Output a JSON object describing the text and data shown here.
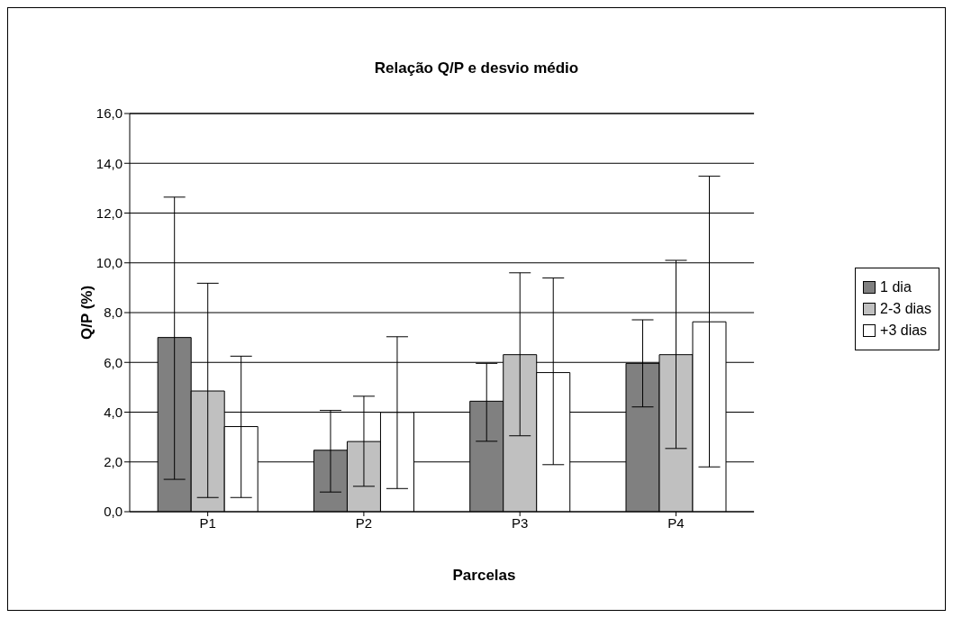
{
  "chart_data": {
    "type": "bar",
    "title": "Relação Q/P e desvio médio",
    "xlabel": "Parcelas",
    "ylabel": "Q/P (%)",
    "categories": [
      "P1",
      "P2",
      "P3",
      "P4"
    ],
    "series": [
      {
        "name": "1 dia",
        "color": "#808080",
        "values": [
          7.0,
          2.47,
          4.44,
          5.96
        ],
        "errors": [
          [
            1.3,
            12.64
          ],
          [
            0.79,
            4.07
          ],
          [
            2.83,
            5.96
          ],
          [
            4.21,
            7.71
          ]
        ]
      },
      {
        "name": "2-3 dias",
        "color": "#c0c0c0",
        "values": [
          4.85,
          2.82,
          6.31,
          6.31
        ],
        "errors": [
          [
            0.57,
            9.18
          ],
          [
            1.02,
            4.64
          ],
          [
            3.05,
            9.6
          ],
          [
            2.54,
            10.1
          ]
        ]
      },
      {
        "name": "+3 dias",
        "color": "#ffffff",
        "values": [
          3.42,
          3.99,
          5.59,
          7.63
        ],
        "errors": [
          [
            0.57,
            6.25
          ],
          [
            0.93,
            7.03
          ],
          [
            1.89,
            9.39
          ],
          [
            1.8,
            13.48
          ]
        ]
      }
    ],
    "ylim": [
      0,
      16
    ],
    "yticks": [
      {
        "value": 0,
        "label": "0,0"
      },
      {
        "value": 2,
        "label": "2,0"
      },
      {
        "value": 4,
        "label": "4,0"
      },
      {
        "value": 6,
        "label": "6,0"
      },
      {
        "value": 8,
        "label": "8,0"
      },
      {
        "value": 10,
        "label": "10,0"
      },
      {
        "value": 12,
        "label": "12,0"
      },
      {
        "value": 14,
        "label": "14,0"
      },
      {
        "value": 16,
        "label": "16,0"
      }
    ],
    "grid": "y",
    "legend": "right"
  }
}
